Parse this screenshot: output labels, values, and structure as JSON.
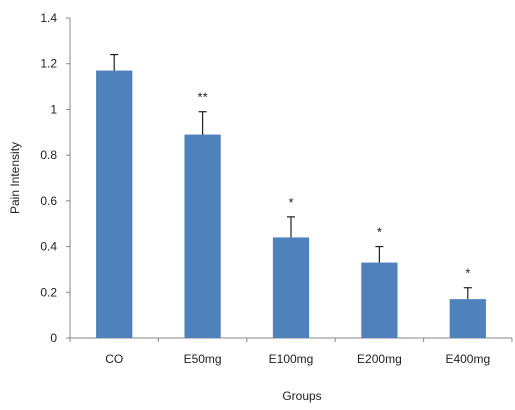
{
  "chart_data": {
    "type": "bar",
    "categories": [
      "CO",
      "E50mg",
      "E100mg",
      "E200mg",
      "E400mg"
    ],
    "values": [
      1.17,
      0.89,
      0.44,
      0.33,
      0.17
    ],
    "error_plus": [
      0.07,
      0.1,
      0.09,
      0.07,
      0.05
    ],
    "significance": [
      "",
      "**",
      "*",
      "*",
      "*"
    ],
    "xlabel": "Groups",
    "ylabel": "Pain Intensity",
    "ylim": [
      0,
      1.4
    ],
    "yticks": [
      "0",
      "0.2",
      "0.4",
      "0.6",
      "0.8",
      "1",
      "1.2",
      "1.4"
    ],
    "ytick_values": [
      0,
      0.2,
      0.4,
      0.6,
      0.8,
      1.0,
      1.2,
      1.4
    ],
    "bar_color": "#4f81bd",
    "grid": false,
    "legend": "none"
  }
}
